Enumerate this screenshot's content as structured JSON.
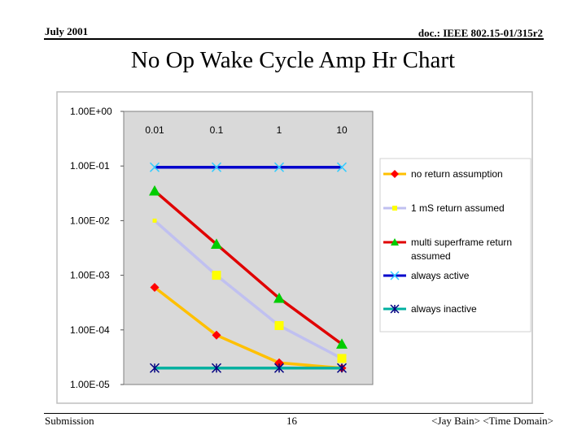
{
  "header": {
    "date": "July 2001",
    "doc_id": "doc.: IEEE 802.15-01/315r2"
  },
  "slide_title": "No Op Wake Cycle Amp Hr Chart",
  "footer": {
    "left": "Submission",
    "page": "16",
    "right": "<Jay Bain> <Time Domain>"
  },
  "colors": {
    "no_return": "#FF0000",
    "no_return_line": "#FFC000",
    "one_ms": "#FFFF00",
    "one_ms_line": "#C0C0F0",
    "multi_superframe": "#00CC00",
    "multi_line": "#E00000",
    "always_active_marker": "#33CCFF",
    "always_active_line": "#0000CC",
    "always_inactive_marker": "#000080",
    "always_inactive_line": "#00B0A0"
  },
  "chart_data": {
    "type": "line",
    "y_scale": "log",
    "ylim": [
      1e-05,
      1
    ],
    "y_tick_labels": [
      "1.00E+00",
      "1.00E-01",
      "1.00E-02",
      "1.00E-03",
      "1.00E-04",
      "1.00E-05"
    ],
    "y_tick_values": [
      1,
      0.1,
      0.01,
      0.001,
      0.0001,
      1e-05
    ],
    "categories": [
      "0.01",
      "0.1",
      "1",
      "10"
    ],
    "x_labels_position": "top",
    "legend_position": "right",
    "series": [
      {
        "name": "no return assumption",
        "marker": "diamond",
        "values": [
          0.0006,
          8e-05,
          2.5e-05,
          2e-05
        ]
      },
      {
        "name": "1 mS return assumed",
        "marker": "square",
        "values": [
          0.01,
          0.001,
          0.00012,
          3e-05
        ]
      },
      {
        "name": "multi superframe  return assumed",
        "marker": "triangle",
        "values": [
          0.035,
          0.0037,
          0.00038,
          5.5e-05
        ]
      },
      {
        "name": "always active",
        "marker": "x",
        "values": [
          0.095,
          0.095,
          0.095,
          0.095
        ]
      },
      {
        "name": "always inactive",
        "marker": "asterisk",
        "values": [
          2e-05,
          2e-05,
          2e-05,
          2e-05
        ]
      }
    ]
  }
}
